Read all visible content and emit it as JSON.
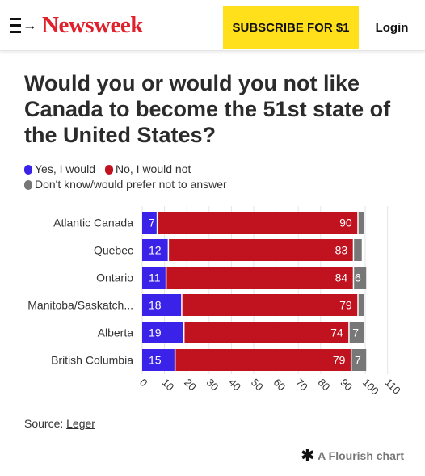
{
  "header": {
    "logo": "Newsweek",
    "subscribe_label": "SUBSCRIBE FOR $1",
    "login_label": "Login",
    "menu_arrow": "→"
  },
  "title": "Would you or would you not like Canada to become the 51st state of the United States?",
  "legend": [
    {
      "label": "Yes, I would",
      "color": "#3a22e8"
    },
    {
      "label": "No, I would not",
      "color": "#c1121f"
    },
    {
      "label": "Don't know/would prefer not to answer",
      "color": "#777777"
    }
  ],
  "chart_data": {
    "type": "bar",
    "orientation": "horizontal",
    "stacked": true,
    "categories": [
      "Atlantic Canada",
      "Quebec",
      "Ontario",
      "Manitoba/Saskatch...",
      "Alberta",
      "British Columbia"
    ],
    "series": [
      {
        "name": "Yes, I would",
        "values": [
          7,
          12,
          11,
          18,
          19,
          15
        ],
        "color": "#3a22e8"
      },
      {
        "name": "No, I would not",
        "values": [
          90,
          83,
          84,
          79,
          74,
          79
        ],
        "color": "#c1121f"
      },
      {
        "name": "Don't know/would prefer not to answer",
        "values": [
          3,
          4,
          6,
          3,
          7,
          7
        ],
        "color": "#777777"
      }
    ],
    "label_threshold": 5,
    "xticks": [
      0,
      10,
      20,
      30,
      40,
      50,
      60,
      70,
      80,
      90,
      100,
      110
    ],
    "xlim": [
      0,
      110
    ],
    "grid": true
  },
  "source": {
    "prefix": "Source: ",
    "link": "Leger"
  },
  "credit": "A Flourish chart"
}
